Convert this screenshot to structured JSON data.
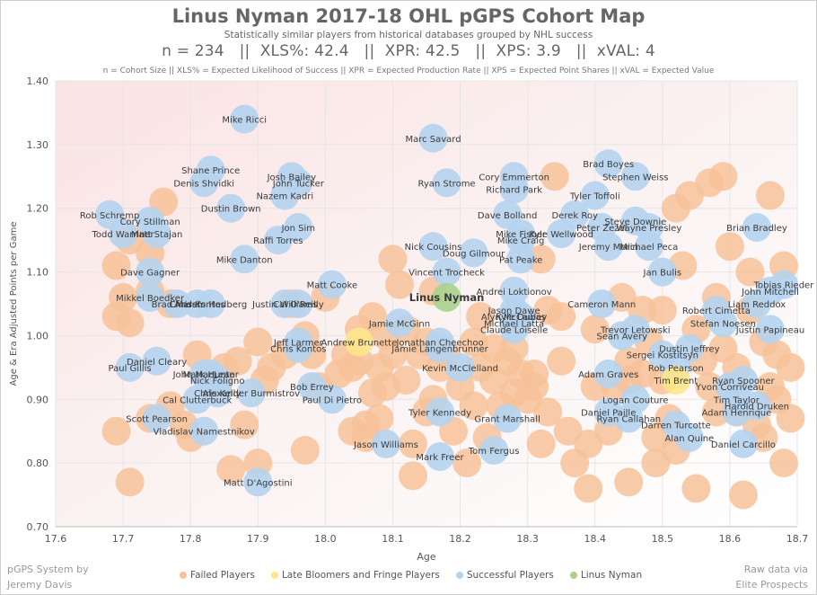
{
  "header": {
    "title": "Linus Nyman 2017-18 OHL pGPS Cohort Map",
    "subtitle": "Statistically similar players from historical databases grouped by NHL success",
    "stats": "n = 234   ||  XLS%: 42.4   ||  XPR: 42.5   ||  XPS: 3.9   ||  xVAL: 4",
    "definitions": "n = Cohort Size || XLS% = Expected Likelihood of Success || XPR = Expected Production Rate || XPS = Expected Point Shares || xVAL = Expected Value"
  },
  "footer": {
    "credit_left_1": "pGPS System by",
    "credit_left_2": "Jeremy Davis",
    "credit_right_1": "Raw data via",
    "credit_right_2": "Elite Prospects"
  },
  "colors": {
    "failed": "#f7c299",
    "late": "#fde68a",
    "success": "#b5d3ee",
    "nyman": "#a9d18e",
    "label": "#3a3a3a"
  },
  "chart_data": {
    "type": "scatter",
    "xlabel": "Age",
    "ylabel": "Age & Era Adjusted Points per Game",
    "xlim": [
      17.6,
      18.7
    ],
    "ylim": [
      0.7,
      1.4
    ],
    "xticks": [
      "17.6",
      "17.7",
      "17.8",
      "17.9",
      "18.0",
      "18.1",
      "18.2",
      "18.3",
      "18.4",
      "18.5",
      "18.6",
      "18.7"
    ],
    "yticks": [
      "0.70",
      "0.80",
      "0.90",
      "1.00",
      "1.10",
      "1.20",
      "1.30",
      "1.40"
    ],
    "legend": [
      {
        "key": "failed",
        "label": "Failed Players"
      },
      {
        "key": "late",
        "label": "Late Bloomers and Fringe Players"
      },
      {
        "key": "success",
        "label": "Successful Players"
      },
      {
        "key": "nyman",
        "label": "Linus Nyman"
      }
    ],
    "named_points": [
      {
        "name": "Linus Nyman",
        "x": 18.18,
        "y": 1.06,
        "group": "nyman"
      },
      {
        "name": "Mike Ricci",
        "x": 17.88,
        "y": 1.34,
        "group": "success"
      },
      {
        "name": "Marc Savard",
        "x": 18.16,
        "y": 1.31,
        "group": "success"
      },
      {
        "name": "Shane Prince",
        "x": 17.83,
        "y": 1.26,
        "group": "success"
      },
      {
        "name": "Denis Shvidki",
        "x": 17.82,
        "y": 1.24,
        "group": "success"
      },
      {
        "name": "John Tucker",
        "x": 17.96,
        "y": 1.24,
        "group": "success"
      },
      {
        "name": "Josh Bailey",
        "x": 17.95,
        "y": 1.25,
        "group": "success"
      },
      {
        "name": "Nazem Kadri",
        "x": 17.94,
        "y": 1.22,
        "group": "success"
      },
      {
        "name": "Dustin Brown",
        "x": 17.86,
        "y": 1.2,
        "group": "success"
      },
      {
        "name": "Jon Sim",
        "x": 17.96,
        "y": 1.17,
        "group": "success"
      },
      {
        "name": "Raffi Torres",
        "x": 17.93,
        "y": 1.15,
        "group": "success"
      },
      {
        "name": "Rob Schremp",
        "x": 17.68,
        "y": 1.19,
        "group": "success"
      },
      {
        "name": "Cory Stillman",
        "x": 17.74,
        "y": 1.18,
        "group": "success"
      },
      {
        "name": "Todd Warriner",
        "x": 17.7,
        "y": 1.16,
        "group": "success"
      },
      {
        "name": "Matt Stajan",
        "x": 17.75,
        "y": 1.16,
        "group": "success"
      },
      {
        "name": "Mike Danton",
        "x": 17.88,
        "y": 1.12,
        "group": "success"
      },
      {
        "name": "Dave Gagner",
        "x": 17.74,
        "y": 1.1,
        "group": "success"
      },
      {
        "name": "Mikkel Boedker",
        "x": 17.74,
        "y": 1.06,
        "group": "success"
      },
      {
        "name": "Brad Marsh",
        "x": 17.78,
        "y": 1.05,
        "group": "success"
      },
      {
        "name": "Chris Kontos",
        "x": 17.81,
        "y": 1.05,
        "group": "success"
      },
      {
        "name": "Anders Hedberg",
        "x": 17.83,
        "y": 1.05,
        "group": "success"
      },
      {
        "name": "Justin Williams",
        "x": 17.94,
        "y": 1.05,
        "group": "success"
      },
      {
        "name": "Cal O'Reilly",
        "x": 17.96,
        "y": 1.05,
        "group": "success"
      },
      {
        "name": "Matt Cooke",
        "x": 18.01,
        "y": 1.08,
        "group": "success"
      },
      {
        "name": "Ryan Strome",
        "x": 18.18,
        "y": 1.24,
        "group": "success"
      },
      {
        "name": "Cory Emmerton",
        "x": 18.28,
        "y": 1.25,
        "group": "success"
      },
      {
        "name": "Richard Park",
        "x": 18.28,
        "y": 1.23,
        "group": "success"
      },
      {
        "name": "Brad Boyes",
        "x": 18.42,
        "y": 1.27,
        "group": "success"
      },
      {
        "name": "Stephen Weiss",
        "x": 18.46,
        "y": 1.25,
        "group": "success"
      },
      {
        "name": "Tyler Toffoli",
        "x": 18.4,
        "y": 1.22,
        "group": "success"
      },
      {
        "name": "Dave Bolland",
        "x": 18.27,
        "y": 1.19,
        "group": "success"
      },
      {
        "name": "Derek Roy",
        "x": 18.37,
        "y": 1.19,
        "group": "success"
      },
      {
        "name": "Steve Downie",
        "x": 18.46,
        "y": 1.18,
        "group": "success"
      },
      {
        "name": "Wayne Presley",
        "x": 18.48,
        "y": 1.17,
        "group": "success"
      },
      {
        "name": "Peter Zezel",
        "x": 18.41,
        "y": 1.17,
        "group": "success"
      },
      {
        "name": "Kyle Wellwood",
        "x": 18.35,
        "y": 1.16,
        "group": "success"
      },
      {
        "name": "Mike Fisher",
        "x": 18.29,
        "y": 1.16,
        "group": "success"
      },
      {
        "name": "Mike Craig",
        "x": 18.29,
        "y": 1.15,
        "group": "success"
      },
      {
        "name": "Jeremy Morin",
        "x": 18.42,
        "y": 1.14,
        "group": "success"
      },
      {
        "name": "Michael Peca",
        "x": 18.48,
        "y": 1.14,
        "group": "success"
      },
      {
        "name": "Nick Cousins",
        "x": 18.16,
        "y": 1.14,
        "group": "success"
      },
      {
        "name": "Doug Gilmour",
        "x": 18.22,
        "y": 1.13,
        "group": "success"
      },
      {
        "name": "Pat Peake",
        "x": 18.29,
        "y": 1.12,
        "group": "success"
      },
      {
        "name": "Jan Bulis",
        "x": 18.5,
        "y": 1.1,
        "group": "success"
      },
      {
        "name": "Vincent Trocheck",
        "x": 18.18,
        "y": 1.1,
        "group": "success"
      },
      {
        "name": "Andrei Loktionov",
        "x": 18.28,
        "y": 1.07,
        "group": "success"
      },
      {
        "name": "Cameron Mann",
        "x": 18.41,
        "y": 1.05,
        "group": "success"
      },
      {
        "name": "Jason Dawe",
        "x": 18.28,
        "y": 1.04,
        "group": "success"
      },
      {
        "name": "Alyn McCauley",
        "x": 18.28,
        "y": 1.03,
        "group": "success"
      },
      {
        "name": "Kyle Dubas",
        "x": 18.29,
        "y": 1.03,
        "group": "success"
      },
      {
        "name": "Michael Latta",
        "x": 18.28,
        "y": 1.02,
        "group": "success"
      },
      {
        "name": "Claude Loiselle",
        "x": 18.28,
        "y": 1.01,
        "group": "success"
      },
      {
        "name": "Jamie McGinn",
        "x": 18.11,
        "y": 1.02,
        "group": "success"
      },
      {
        "name": "Jonathan Cheechoo",
        "x": 18.17,
        "y": 0.99,
        "group": "success"
      },
      {
        "name": "Jamie Langenbrunner",
        "x": 18.17,
        "y": 0.98,
        "group": "success"
      },
      {
        "name": "Andrew Brunette",
        "x": 18.05,
        "y": 0.99,
        "group": "late"
      },
      {
        "name": "Kevin McClelland",
        "x": 18.2,
        "y": 0.95,
        "group": "success"
      },
      {
        "name": "Jeff Larmer",
        "x": 17.96,
        "y": 0.99,
        "group": "success"
      },
      {
        "name": "Chris Kontos",
        "x": 17.96,
        "y": 0.98,
        "group": "success"
      },
      {
        "name": "Liam Reddox",
        "x": 18.64,
        "y": 1.05,
        "group": "success"
      },
      {
        "name": "Robert Cimetta",
        "x": 18.58,
        "y": 1.04,
        "group": "success"
      },
      {
        "name": "Tobias Rieder",
        "x": 18.68,
        "y": 1.08,
        "group": "success"
      },
      {
        "name": "John Mitchell",
        "x": 18.66,
        "y": 1.07,
        "group": "success"
      },
      {
        "name": "Brian Bradley",
        "x": 18.64,
        "y": 1.17,
        "group": "success"
      },
      {
        "name": "Stefan Noesen",
        "x": 18.59,
        "y": 1.02,
        "group": "success"
      },
      {
        "name": "Justin Papineau",
        "x": 18.66,
        "y": 1.01,
        "group": "success"
      },
      {
        "name": "Trevor Letowski",
        "x": 18.46,
        "y": 1.01,
        "group": "success"
      },
      {
        "name": "Sean Avery",
        "x": 18.44,
        "y": 1.0,
        "group": "success"
      },
      {
        "name": "Dustin Jeffrey",
        "x": 18.54,
        "y": 0.98,
        "group": "success"
      },
      {
        "name": "Sergei Kostitsyn",
        "x": 18.5,
        "y": 0.97,
        "group": "success"
      },
      {
        "name": "Rob Pearson",
        "x": 18.52,
        "y": 0.95,
        "group": "success"
      },
      {
        "name": "Adam Graves",
        "x": 18.42,
        "y": 0.94,
        "group": "success"
      },
      {
        "name": "Ryan Spooner",
        "x": 18.62,
        "y": 0.93,
        "group": "success"
      },
      {
        "name": "Yvon Corriveau",
        "x": 18.6,
        "y": 0.92,
        "group": "success"
      },
      {
        "name": "Tim Brent",
        "x": 18.52,
        "y": 0.93,
        "group": "late"
      },
      {
        "name": "Logan Couture",
        "x": 18.46,
        "y": 0.9,
        "group": "success"
      },
      {
        "name": "Tim Taylor",
        "x": 18.61,
        "y": 0.9,
        "group": "success"
      },
      {
        "name": "Harold Druken",
        "x": 18.64,
        "y": 0.89,
        "group": "success"
      },
      {
        "name": "Adam Henrique",
        "x": 18.61,
        "y": 0.88,
        "group": "success"
      },
      {
        "name": "Daniel Paille",
        "x": 18.42,
        "y": 0.88,
        "group": "success"
      },
      {
        "name": "Ryan Callahan",
        "x": 18.45,
        "y": 0.87,
        "group": "success"
      },
      {
        "name": "Darren Turcotte",
        "x": 18.52,
        "y": 0.86,
        "group": "success"
      },
      {
        "name": "Alan Quine",
        "x": 18.54,
        "y": 0.84,
        "group": "success"
      },
      {
        "name": "Daniel Carcillo",
        "x": 18.62,
        "y": 0.83,
        "group": "success"
      },
      {
        "name": "Tyler Kennedy",
        "x": 18.17,
        "y": 0.88,
        "group": "success"
      },
      {
        "name": "Grant Marshall",
        "x": 18.27,
        "y": 0.87,
        "group": "success"
      },
      {
        "name": "Tom Fergus",
        "x": 18.25,
        "y": 0.82,
        "group": "success"
      },
      {
        "name": "Mark Freer",
        "x": 18.17,
        "y": 0.81,
        "group": "success"
      },
      {
        "name": "Jason Williams",
        "x": 18.09,
        "y": 0.83,
        "group": "success"
      },
      {
        "name": "Bob Errey",
        "x": 17.98,
        "y": 0.92,
        "group": "success"
      },
      {
        "name": "Paul Di Pietro",
        "x": 18.01,
        "y": 0.9,
        "group": "success"
      },
      {
        "name": "John MacLean",
        "x": 17.82,
        "y": 0.94,
        "group": "success"
      },
      {
        "name": "Nick Foligno",
        "x": 17.84,
        "y": 0.93,
        "group": "success"
      },
      {
        "name": "Mark Hunter",
        "x": 17.83,
        "y": 0.94,
        "group": "success"
      },
      {
        "name": "Chris Kelly",
        "x": 17.84,
        "y": 0.91,
        "group": "success"
      },
      {
        "name": "Alexander Burmistrov",
        "x": 17.89,
        "y": 0.91,
        "group": "success"
      },
      {
        "name": "Cal Clutterbuck",
        "x": 17.81,
        "y": 0.9,
        "group": "success"
      },
      {
        "name": "Daniel Cleary",
        "x": 17.75,
        "y": 0.96,
        "group": "success"
      },
      {
        "name": "Paul Gillis",
        "x": 17.71,
        "y": 0.95,
        "group": "success"
      },
      {
        "name": "Scott Pearson",
        "x": 17.75,
        "y": 0.87,
        "group": "success"
      },
      {
        "name": "Vladislav Namestnikov",
        "x": 17.82,
        "y": 0.85,
        "group": "success"
      },
      {
        "name": "Matt D'Agostini",
        "x": 17.9,
        "y": 0.77,
        "group": "success"
      }
    ],
    "failed_points": [
      [
        17.69,
        1.11
      ],
      [
        17.69,
        1.03
      ],
      [
        17.7,
        1.06
      ],
      [
        17.71,
        1.02
      ],
      [
        17.71,
        1.15
      ],
      [
        17.74,
        1.07
      ],
      [
        17.76,
        1.21
      ],
      [
        17.74,
        1.13
      ],
      [
        17.77,
        1.05
      ],
      [
        17.69,
        0.85
      ],
      [
        17.71,
        0.77
      ],
      [
        17.74,
        0.87
      ],
      [
        17.77,
        0.89
      ],
      [
        17.79,
        0.86
      ],
      [
        17.8,
        0.84
      ],
      [
        17.81,
        0.97
      ],
      [
        17.84,
        0.92
      ],
      [
        17.85,
        0.95
      ],
      [
        17.86,
        0.79
      ],
      [
        17.87,
        0.96
      ],
      [
        17.88,
        0.86
      ],
      [
        17.9,
        0.99
      ],
      [
        17.9,
        0.8
      ],
      [
        17.91,
        0.93
      ],
      [
        17.92,
        0.95
      ],
      [
        17.94,
        0.97
      ],
      [
        17.95,
        1.05
      ],
      [
        17.97,
        1.0
      ],
      [
        17.97,
        0.82
      ],
      [
        17.98,
        0.97
      ],
      [
        17.99,
        0.92
      ],
      [
        18.0,
        1.06
      ],
      [
        18.02,
        0.94
      ],
      [
        18.03,
        0.97
      ],
      [
        18.04,
        0.95
      ],
      [
        18.04,
        0.85
      ],
      [
        18.05,
        1.01
      ],
      [
        18.05,
        0.96
      ],
      [
        18.06,
        0.86
      ],
      [
        18.06,
        0.84
      ],
      [
        18.07,
        1.03
      ],
      [
        18.07,
        0.91
      ],
      [
        18.08,
        0.95
      ],
      [
        18.08,
        0.87
      ],
      [
        18.09,
        1.0
      ],
      [
        18.09,
        0.92
      ],
      [
        18.1,
        1.12
      ],
      [
        18.1,
        0.97
      ],
      [
        18.11,
        1.08
      ],
      [
        18.12,
        1.01
      ],
      [
        18.12,
        0.93
      ],
      [
        18.13,
        0.83
      ],
      [
        18.13,
        0.78
      ],
      [
        18.14,
        0.97
      ],
      [
        18.15,
        0.99
      ],
      [
        18.15,
        0.88
      ],
      [
        18.16,
        1.07
      ],
      [
        18.16,
        0.9
      ],
      [
        18.17,
        0.95
      ],
      [
        18.18,
        0.97
      ],
      [
        18.19,
        0.85
      ],
      [
        18.2,
        0.92
      ],
      [
        18.21,
        0.8
      ],
      [
        18.22,
        0.99
      ],
      [
        18.22,
        0.89
      ],
      [
        18.23,
        0.95
      ],
      [
        18.23,
        1.03
      ],
      [
        18.24,
        0.84
      ],
      [
        18.25,
        0.93
      ],
      [
        18.25,
        0.98
      ],
      [
        18.26,
        0.89
      ],
      [
        18.27,
        0.96
      ],
      [
        18.28,
        0.98
      ],
      [
        18.28,
        0.91
      ],
      [
        18.29,
        0.94
      ],
      [
        18.3,
        0.9
      ],
      [
        18.31,
        0.92
      ],
      [
        18.31,
        0.94
      ],
      [
        18.32,
        1.12
      ],
      [
        18.32,
        0.83
      ],
      [
        18.33,
        1.04
      ],
      [
        18.33,
        0.88
      ],
      [
        18.34,
        1.25
      ],
      [
        18.35,
        1.03
      ],
      [
        18.35,
        0.96
      ],
      [
        18.36,
        0.85
      ],
      [
        18.37,
        0.8
      ],
      [
        18.39,
        0.76
      ],
      [
        18.39,
        0.83
      ],
      [
        18.4,
        0.92
      ],
      [
        18.4,
        1.01
      ],
      [
        18.42,
        0.85
      ],
      [
        18.43,
        0.92
      ],
      [
        18.44,
        1.06
      ],
      [
        18.45,
        0.96
      ],
      [
        18.45,
        0.77
      ],
      [
        18.47,
        0.94
      ],
      [
        18.48,
        0.99
      ],
      [
        18.49,
        0.84
      ],
      [
        18.49,
        0.8
      ],
      [
        18.5,
        1.04
      ],
      [
        18.5,
        0.93
      ],
      [
        18.51,
        0.87
      ],
      [
        18.52,
        0.82
      ],
      [
        18.52,
        1.2
      ],
      [
        18.53,
        1.11
      ],
      [
        18.54,
        1.22
      ],
      [
        18.55,
        0.76
      ],
      [
        18.55,
        1.01
      ],
      [
        18.56,
        0.96
      ],
      [
        18.57,
        0.92
      ],
      [
        18.57,
        1.24
      ],
      [
        18.58,
        0.88
      ],
      [
        18.58,
        1.06
      ],
      [
        18.59,
        1.25
      ],
      [
        18.59,
        0.98
      ],
      [
        18.6,
        1.14
      ],
      [
        18.61,
        0.88
      ],
      [
        18.61,
        0.95
      ],
      [
        18.62,
        0.75
      ],
      [
        18.63,
        1.1
      ],
      [
        18.63,
        1.04
      ],
      [
        18.64,
        0.86
      ],
      [
        18.65,
        0.99
      ],
      [
        18.65,
        0.84
      ],
      [
        18.66,
        1.22
      ],
      [
        18.66,
        0.92
      ],
      [
        18.67,
        0.9
      ],
      [
        18.67,
        0.97
      ],
      [
        18.68,
        1.11
      ],
      [
        18.68,
        0.8
      ],
      [
        18.69,
        0.95
      ],
      [
        18.69,
        0.87
      ],
      [
        18.47,
        1.04
      ],
      [
        18.45,
        0.93
      ]
    ]
  }
}
